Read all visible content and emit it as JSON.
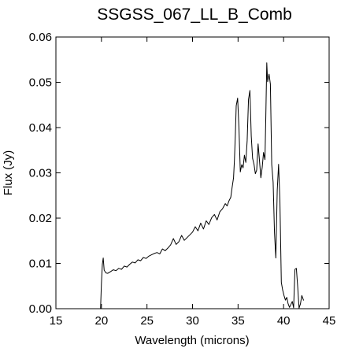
{
  "chart_data": {
    "type": "line",
    "title": "SSGSS_067_LL_B_Comb",
    "xlabel": "Wavelength (microns)",
    "ylabel": "Flux (Jy)",
    "xlim": [
      15,
      45
    ],
    "ylim": [
      0.0,
      0.06
    ],
    "xticks": [
      15,
      20,
      25,
      30,
      35,
      40,
      45
    ],
    "xtick_labels": [
      "15",
      "20",
      "25",
      "30",
      "35",
      "40",
      "45"
    ],
    "yticks": [
      0.0,
      0.01,
      0.02,
      0.03,
      0.04,
      0.05,
      0.06
    ],
    "ytick_labels": [
      "0.00",
      "0.01",
      "0.02",
      "0.03",
      "0.04",
      "0.05",
      "0.06"
    ],
    "grid": false,
    "legend": "none",
    "line_color": "#000000",
    "series": [
      {
        "x": [
          19.9,
          20.0,
          20.1,
          20.2,
          20.3,
          20.5,
          20.7,
          21.0,
          21.3,
          21.6,
          21.9,
          22.2,
          22.5,
          22.8,
          23.1,
          23.4,
          23.7,
          24.0,
          24.3,
          24.6,
          24.9,
          25.2,
          25.5,
          25.8,
          26.1,
          26.4,
          26.7,
          27.0,
          27.3,
          27.6,
          27.9,
          28.2,
          28.5,
          28.8,
          29.1,
          29.4,
          29.7,
          30.0,
          30.3,
          30.6,
          30.9,
          31.2,
          31.5,
          31.8,
          32.1,
          32.4,
          32.7,
          33.0,
          33.3,
          33.6,
          33.8,
          34.0,
          34.2,
          34.35,
          34.5,
          34.6,
          34.7,
          34.8,
          34.95,
          35.1,
          35.25,
          35.4,
          35.55,
          35.7,
          35.85,
          36.0,
          36.15,
          36.3,
          36.45,
          36.6,
          36.75,
          36.9,
          37.05,
          37.2,
          37.35,
          37.5,
          37.65,
          37.8,
          37.95,
          38.05,
          38.15,
          38.25,
          38.4,
          38.55,
          38.7,
          38.85,
          39.0,
          39.15,
          39.3,
          39.45,
          39.6,
          39.75,
          39.9,
          40.05,
          40.2,
          40.35,
          40.5,
          40.65,
          40.8,
          40.95,
          41.1,
          41.25,
          41.4,
          41.55,
          41.7,
          41.85,
          42.0,
          42.2
        ],
        "y": [
          0.0,
          0.0055,
          0.0098,
          0.0112,
          0.0085,
          0.0079,
          0.0078,
          0.0082,
          0.0086,
          0.0084,
          0.0089,
          0.0087,
          0.0094,
          0.0092,
          0.0098,
          0.0103,
          0.0101,
          0.0108,
          0.0106,
          0.0113,
          0.0111,
          0.0116,
          0.0119,
          0.0122,
          0.0124,
          0.0121,
          0.0132,
          0.0128,
          0.0134,
          0.0141,
          0.0155,
          0.0142,
          0.0148,
          0.0162,
          0.0151,
          0.0157,
          0.0163,
          0.0169,
          0.0181,
          0.0172,
          0.0189,
          0.0176,
          0.0194,
          0.0186,
          0.0201,
          0.0208,
          0.0196,
          0.0214,
          0.0221,
          0.0232,
          0.0227,
          0.0238,
          0.0246,
          0.0268,
          0.0289,
          0.0327,
          0.0384,
          0.0448,
          0.0465,
          0.0398,
          0.0302,
          0.0318,
          0.0311,
          0.0339,
          0.0323,
          0.0371,
          0.0462,
          0.0482,
          0.0381,
          0.0332,
          0.0319,
          0.0298,
          0.0306,
          0.0364,
          0.0328,
          0.0289,
          0.0312,
          0.0345,
          0.0329,
          0.0425,
          0.0543,
          0.0501,
          0.0518,
          0.0496,
          0.0318,
          0.0279,
          0.0168,
          0.0112,
          0.0261,
          0.0319,
          0.0238,
          0.0058,
          0.0041,
          0.0029,
          0.0019,
          0.0025,
          0.0011,
          0.0003,
          0.0009,
          0.0016,
          0.0002,
          0.0087,
          0.0089,
          0.0048,
          0.0001,
          0.0011,
          0.0029,
          0.0018
        ]
      }
    ]
  }
}
